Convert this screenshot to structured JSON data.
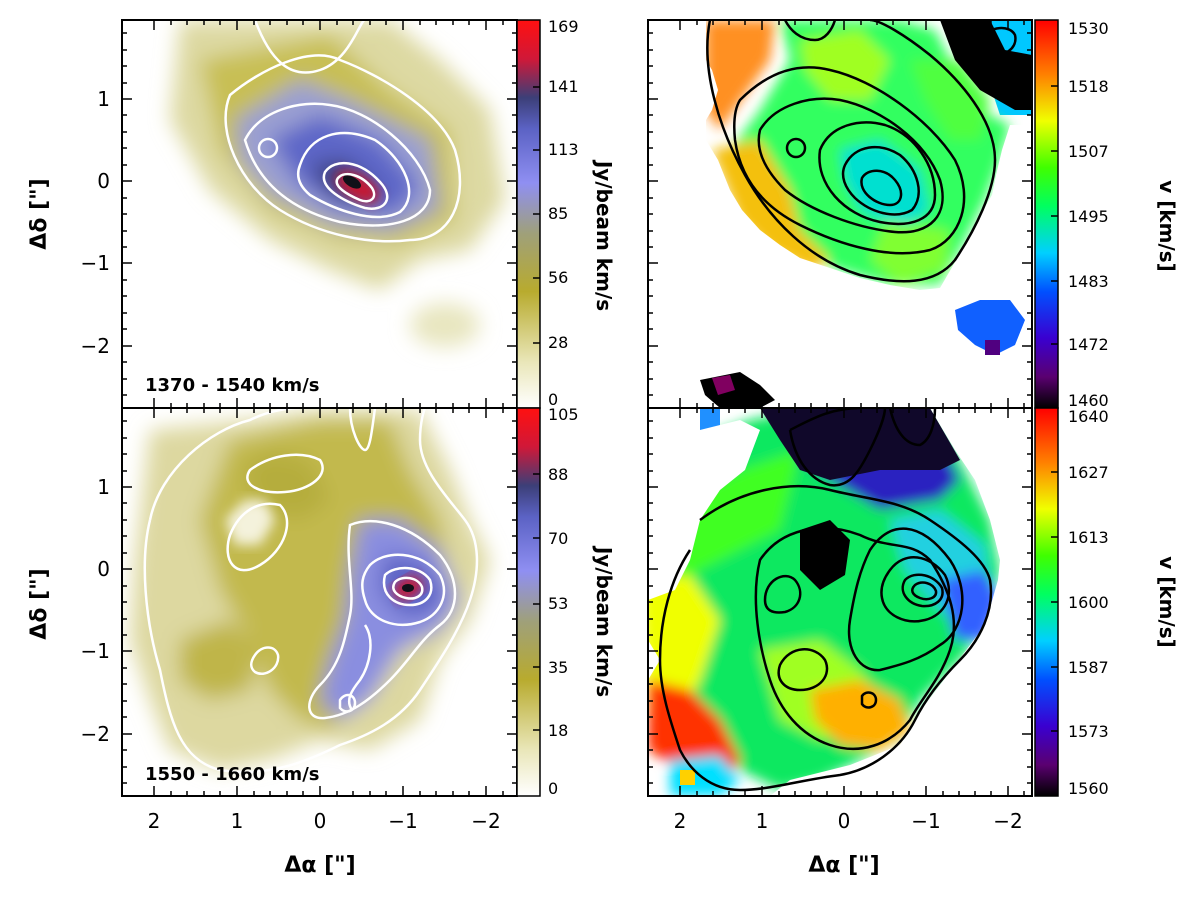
{
  "chart_data": [
    {
      "type": "heatmap",
      "panel": "top-left",
      "title": "",
      "annotation": "1370 - 1540 km/s",
      "xlabel": "",
      "ylabel": "Δδ [\"]",
      "xlim": [
        2.5,
        -2.3
      ],
      "ylim": [
        -2.7,
        1.95
      ],
      "x_ticks": [
        "2",
        "1",
        "0",
        "−1",
        "−2"
      ],
      "y_ticks": [
        "1",
        "0",
        "−1",
        "−2"
      ],
      "colorbar": {
        "label": "Jy/beam km/s",
        "ticks": [
          "169",
          "141",
          "113",
          "85",
          "56",
          "28",
          "0"
        ],
        "range": [
          0,
          169
        ],
        "colormap": "yellow-blue-red"
      },
      "contour_color": "#ffffff"
    },
    {
      "type": "heatmap",
      "panel": "top-right",
      "title": "",
      "xlabel": "",
      "ylabel": "",
      "xlim": [
        2.5,
        -2.3
      ],
      "ylim": [
        -2.7,
        1.95
      ],
      "colorbar": {
        "label": "v [km/s]",
        "ticks": [
          "1530",
          "1518",
          "1507",
          "1495",
          "1483",
          "1472",
          "1460"
        ],
        "range": [
          1460,
          1530
        ],
        "colormap": "rainbow"
      },
      "contour_color": "#000000"
    },
    {
      "type": "heatmap",
      "panel": "bottom-left",
      "title": "",
      "annotation": "1550 - 1660 km/s",
      "xlabel": "Δα [\"]",
      "ylabel": "Δδ [\"]",
      "xlim": [
        2.5,
        -2.3
      ],
      "ylim": [
        -2.7,
        1.95
      ],
      "x_ticks": [
        "2",
        "1",
        "0",
        "−1",
        "−2"
      ],
      "y_ticks": [
        "1",
        "0",
        "−1",
        "−2"
      ],
      "colorbar": {
        "label": "Jy/beam km/s",
        "ticks": [
          "105",
          "88",
          "70",
          "53",
          "35",
          "18",
          "0"
        ],
        "range": [
          0,
          105
        ],
        "colormap": "yellow-blue-red"
      },
      "contour_color": "#ffffff"
    },
    {
      "type": "heatmap",
      "panel": "bottom-right",
      "title": "",
      "xlabel": "Δα [\"]",
      "ylabel": "",
      "xlim": [
        2.5,
        -2.3
      ],
      "ylim": [
        -2.7,
        1.95
      ],
      "x_ticks": [
        "2",
        "1",
        "0",
        "−1",
        "−2"
      ],
      "colorbar": {
        "label": "v [km/s]",
        "ticks": [
          "1640",
          "1627",
          "1613",
          "1600",
          "1587",
          "1573",
          "1560"
        ],
        "range": [
          1560,
          1640
        ],
        "colormap": "rainbow"
      },
      "contour_color": "#000000"
    }
  ]
}
